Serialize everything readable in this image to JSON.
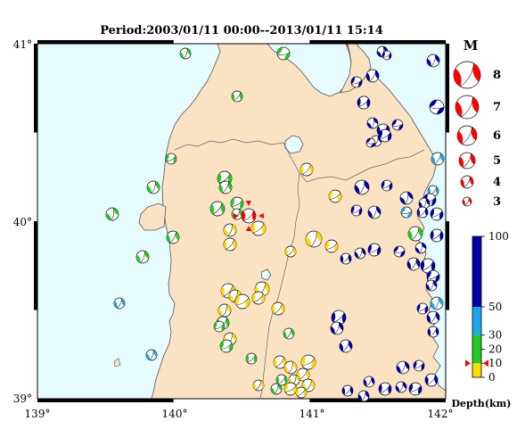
{
  "title": "Period:2003/01/11 00:00--2013/01/11 15:14",
  "axes": {
    "lon_ticks": [
      "139°",
      "140°",
      "141°",
      "142°"
    ],
    "lat_ticks": [
      "41°",
      "40°",
      "39°"
    ],
    "lon_range": [
      139,
      142
    ],
    "lat_range": [
      39,
      41
    ]
  },
  "magnitude_legend": {
    "title": "M",
    "levels": [
      8,
      7,
      6,
      5,
      4,
      3
    ],
    "color": "#ff0000"
  },
  "depth_scale": {
    "label": "Depth(km)",
    "ticks": [
      "100",
      "50",
      "30",
      "20",
      "10",
      "0"
    ],
    "bands": [
      {
        "from": 0,
        "to": 10,
        "color": "#ffdd00"
      },
      {
        "from": 10,
        "to": 30,
        "color": "#22cc22"
      },
      {
        "from": 30,
        "to": 50,
        "color": "#1aa8e8"
      },
      {
        "from": 50,
        "to": 100,
        "color": "#0000aa"
      }
    ]
  },
  "colors": {
    "sea": "#e6fbfb",
    "land": "#fbe2c3",
    "shallow": "#ffdd00",
    "mid": "#22cc22",
    "deep_cyan": "#1aa8e8",
    "deep": "#0000aa",
    "mainshock": "#ff0000"
  },
  "mainshock": {
    "lon": 140.5,
    "lat": 40.05,
    "mag": 4.5
  }
}
